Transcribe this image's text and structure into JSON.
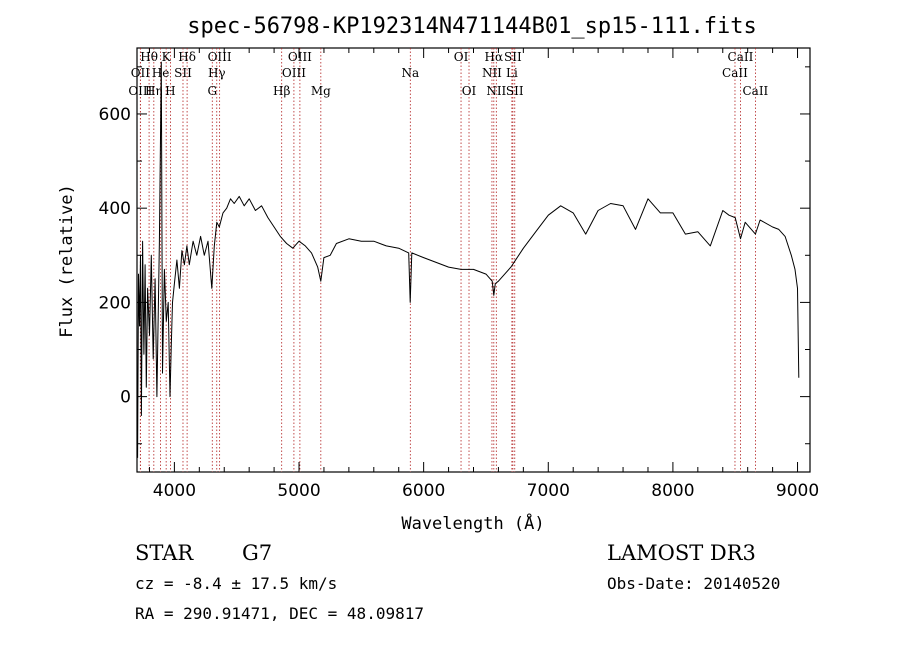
{
  "title": "spec-56798-KP192314N471144B01_sp15-111.fits",
  "chart_data": {
    "type": "line",
    "xlabel": "Wavelength (Å)",
    "ylabel": "Flux (relative)",
    "xlim": [
      3700,
      9100
    ],
    "ylim": [
      -160,
      740
    ],
    "xticks": [
      4000,
      5000,
      6000,
      7000,
      8000,
      9000
    ],
    "yticks": [
      0,
      200,
      400,
      600
    ],
    "grid": false,
    "line_color": "#000000",
    "marker_color": "#b22222",
    "spectrum": {
      "x": [
        3705,
        3712,
        3720,
        3728,
        3735,
        3745,
        3755,
        3765,
        3775,
        3785,
        3800,
        3815,
        3830,
        3845,
        3860,
        3880,
        3895,
        3905,
        3920,
        3935,
        3950,
        3965,
        3975,
        3985,
        4000,
        4020,
        4040,
        4060,
        4080,
        4100,
        4120,
        4150,
        4180,
        4210,
        4240,
        4270,
        4300,
        4320,
        4340,
        4360,
        4390,
        4420,
        4450,
        4480,
        4520,
        4560,
        4600,
        4650,
        4700,
        4750,
        4800,
        4850,
        4900,
        4950,
        5000,
        5050,
        5100,
        5150,
        5175,
        5200,
        5250,
        5300,
        5400,
        5500,
        5600,
        5700,
        5800,
        5880,
        5892,
        5905,
        6000,
        6100,
        6200,
        6300,
        6400,
        6500,
        6550,
        6563,
        6575,
        6600,
        6700,
        6800,
        6900,
        7000,
        7100,
        7200,
        7300,
        7400,
        7500,
        7600,
        7700,
        7800,
        7900,
        8000,
        8100,
        8200,
        8300,
        8400,
        8450,
        8500,
        8542,
        8580,
        8662,
        8700,
        8800,
        8850,
        8900,
        8950,
        8980,
        9000,
        9010
      ],
      "y": [
        -130,
        260,
        150,
        300,
        -40,
        330,
        90,
        280,
        20,
        230,
        130,
        300,
        80,
        250,
        0,
        330,
        710,
        50,
        270,
        160,
        200,
        0,
        110,
        200,
        240,
        290,
        230,
        310,
        280,
        320,
        280,
        330,
        300,
        340,
        300,
        330,
        230,
        320,
        370,
        360,
        390,
        400,
        420,
        410,
        425,
        405,
        420,
        395,
        405,
        380,
        360,
        340,
        325,
        315,
        330,
        320,
        305,
        275,
        245,
        295,
        300,
        325,
        335,
        330,
        330,
        320,
        315,
        305,
        200,
        305,
        295,
        285,
        275,
        270,
        270,
        260,
        245,
        215,
        240,
        245,
        275,
        315,
        350,
        385,
        405,
        390,
        345,
        395,
        410,
        405,
        355,
        420,
        390,
        390,
        345,
        350,
        320,
        395,
        385,
        380,
        335,
        370,
        345,
        375,
        360,
        355,
        340,
        300,
        270,
        230,
        40
      ]
    },
    "lines": [
      {
        "label": "Hθ",
        "x": 3797,
        "row": 1
      },
      {
        "label": "K",
        "x": 3934,
        "row": 1
      },
      {
        "label": "Hδ",
        "x": 4102,
        "row": 1
      },
      {
        "label": "OIII",
        "x": 4363,
        "row": 1
      },
      {
        "label": "OIII",
        "x": 5007,
        "row": 1
      },
      {
        "label": "OI",
        "x": 6300,
        "row": 1
      },
      {
        "label": "Hα",
        "x": 6563,
        "row": 1
      },
      {
        "label": "SII",
        "x": 6716,
        "row": 1
      },
      {
        "label": "CaII",
        "x": 8542,
        "row": 1
      },
      {
        "label": "OII",
        "x": 3727,
        "row": 2
      },
      {
        "label": "He",
        "x": 3889,
        "row": 2
      },
      {
        "label": "SII",
        "x": 4069,
        "row": 2
      },
      {
        "label": "Hγ",
        "x": 4340,
        "row": 2
      },
      {
        "label": "OIII",
        "x": 4959,
        "row": 2
      },
      {
        "label": "Na",
        "x": 5893,
        "row": 2
      },
      {
        "label": "NII",
        "x": 6548,
        "row": 2
      },
      {
        "label": "Li",
        "x": 6708,
        "row": 2
      },
      {
        "label": "CaII",
        "x": 8498,
        "row": 2
      },
      {
        "label": "OIII",
        "x": 3727,
        "row": 3
      },
      {
        "label": "Hη",
        "x": 3835,
        "row": 3
      },
      {
        "label": "H",
        "x": 3968,
        "row": 3
      },
      {
        "label": "G",
        "x": 4304,
        "row": 3
      },
      {
        "label": "Hβ",
        "x": 4861,
        "row": 3
      },
      {
        "label": "Mg",
        "x": 5175,
        "row": 3
      },
      {
        "label": "OI",
        "x": 6364,
        "row": 3
      },
      {
        "label": "NII",
        "x": 6583,
        "row": 3
      },
      {
        "label": "SII",
        "x": 6731,
        "row": 3
      },
      {
        "label": "CaII",
        "x": 8662,
        "row": 3
      }
    ]
  },
  "info": {
    "object_type": "STAR",
    "subclass": "G7",
    "survey": "LAMOST DR3",
    "redshift": "cz = -8.4 ± 17.5 km/s",
    "obs_date": "Obs-Date: 20140520",
    "coords": "RA = 290.91471, DEC =  48.09817"
  }
}
